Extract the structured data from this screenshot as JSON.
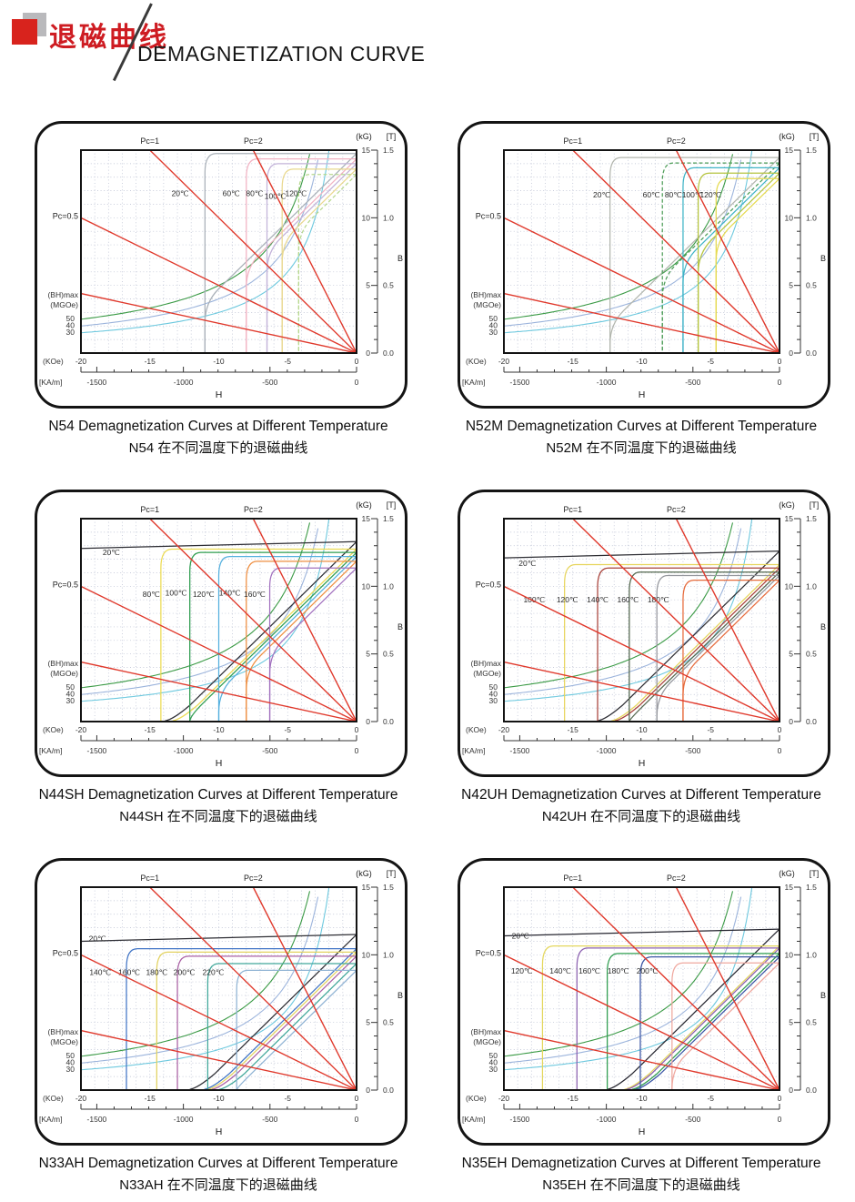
{
  "header": {
    "title_zh": "退磁曲线",
    "title_en": "DEMAGNETIZATION CURVE"
  },
  "chart_frame": {
    "h_label": "H",
    "b_label": "B",
    "kg_unit": "(kG)",
    "t_unit": "[T]",
    "koe_unit": "(KOe)",
    "kam_unit": "[KA/m]",
    "kg_ticks": [
      15,
      10,
      5,
      0
    ],
    "t_ticks": [
      "1.5",
      "1.0",
      "0.5",
      "0.0"
    ],
    "koe_ticks": [
      -20,
      -15,
      -10,
      -5,
      0
    ],
    "kam_ticks": [
      -1500,
      -1000,
      -500,
      0
    ],
    "koe_range": [
      -20,
      0
    ],
    "kg_range": [
      0,
      15
    ],
    "bhmax_label": "(BH)max",
    "mgoe_label": "(MGOe)",
    "bh_contours": [
      {
        "mgoe": 50,
        "color": "#3a9a45"
      },
      {
        "mgoe": 40,
        "color": "#9cb4dc"
      },
      {
        "mgoe": 30,
        "color": "#6cc8de"
      }
    ],
    "load_lines": [
      {
        "label": "Pc=0.5",
        "slope": 0.5
      },
      {
        "label": "Pc=1",
        "slope": 1
      },
      {
        "label": "Pc=2",
        "slope": 2
      },
      {
        "label": "",
        "slope": 0.22
      }
    ],
    "load_line_color": "#e0392c",
    "grid_color": "#b6bccf"
  },
  "chart_data": [
    {
      "grade": "N54",
      "type": "line",
      "caption_en": "N54 Demagnetization Curves at Different Temperature",
      "caption_zh": "N54 在不同温度下的退磁曲线",
      "series": [
        {
          "label": "20℃",
          "temp_c": 20,
          "color": "#a9b0b8",
          "br_kg": 14.75,
          "hcj_koe": 11.0,
          "label_at": [
            -12.8,
            11.6
          ]
        },
        {
          "label": "60℃",
          "temp_c": 60,
          "color": "#f2b3c3",
          "br_kg": 14.35,
          "hcj_koe": 8.0,
          "label_at": [
            -9.1,
            11.6
          ]
        },
        {
          "label": "80℃",
          "temp_c": 80,
          "color": "#c3b3d9",
          "br_kg": 14.0,
          "hcj_koe": 6.5,
          "label_at": [
            -7.4,
            11.6
          ]
        },
        {
          "label": "100℃",
          "temp_c": 100,
          "color": "#e9d88e",
          "br_kg": 13.6,
          "hcj_koe": 5.4,
          "label_at": [
            -5.9,
            11.4
          ]
        },
        {
          "label": "120℃",
          "temp_c": 120,
          "color": "#b7d88e",
          "br_kg": 13.2,
          "hcj_koe": 4.2,
          "dash": true,
          "label_at": [
            -4.4,
            11.6
          ]
        }
      ]
    },
    {
      "grade": "N52M",
      "type": "line",
      "caption_en": "N52M Demagnetization Curves at Different Temperature",
      "caption_zh": "N52M 在不同温度下的退磁曲线",
      "series": [
        {
          "label": "20℃",
          "temp_c": 20,
          "color": "#b2b6ae",
          "br_kg": 14.45,
          "hcj_koe": 12.3,
          "label_at": [
            -12.9,
            11.5
          ]
        },
        {
          "label": "60℃",
          "temp_c": 60,
          "color": "#4f9e5a",
          "br_kg": 14.05,
          "hcj_koe": 8.5,
          "dash": true,
          "label_at": [
            -9.3,
            11.5
          ]
        },
        {
          "label": "80℃",
          "temp_c": 80,
          "color": "#3eb3c6",
          "br_kg": 13.7,
          "hcj_koe": 7.0,
          "label_at": [
            -7.7,
            11.5
          ]
        },
        {
          "label": "100℃",
          "temp_c": 100,
          "color": "#b5c43e",
          "br_kg": 13.3,
          "hcj_koe": 5.9,
          "label_at": [
            -6.3,
            11.5
          ]
        },
        {
          "label": "120℃",
          "temp_c": 120,
          "color": "#e5da50",
          "br_kg": 12.9,
          "hcj_koe": 4.6,
          "label_at": [
            -5.0,
            11.5
          ]
        }
      ]
    },
    {
      "grade": "N44SH",
      "type": "line",
      "caption_en": "N44SH Demagnetization Curves at Different Temperature",
      "caption_zh": "N44SH 在不同温度下的退磁曲线",
      "series": [
        {
          "label": "20℃",
          "temp_c": 20,
          "color": "#2e2e34",
          "br_kg": 13.3,
          "hcj_koe": 24,
          "label_at": [
            -17.8,
            12.3
          ]
        },
        {
          "label": "80℃",
          "temp_c": 80,
          "color": "#ecdb52",
          "br_kg": 12.75,
          "hcj_koe": 14.2,
          "label_at": [
            -14.9,
            9.2
          ]
        },
        {
          "label": "100℃",
          "temp_c": 100,
          "color": "#2e9d4f",
          "br_kg": 12.5,
          "hcj_koe": 12.1,
          "label_at": [
            -13.1,
            9.3
          ]
        },
        {
          "label": "120℃",
          "temp_c": 120,
          "color": "#54b0de",
          "br_kg": 12.2,
          "hcj_koe": 10.0,
          "label_at": [
            -11.1,
            9.2
          ]
        },
        {
          "label": "140℃",
          "temp_c": 140,
          "color": "#ee8e40",
          "br_kg": 11.85,
          "hcj_koe": 8.0,
          "label_at": [
            -9.2,
            9.3
          ]
        },
        {
          "label": "160℃",
          "temp_c": 160,
          "color": "#a271bf",
          "br_kg": 11.35,
          "hcj_koe": 6.3,
          "label_at": [
            -7.4,
            9.2
          ]
        }
      ]
    },
    {
      "grade": "N42UH",
      "type": "line",
      "caption_en": "N42UH Demagnetization Curves at Different Temperature",
      "caption_zh": "N42UH 在不同温度下的退磁曲线",
      "series": [
        {
          "label": "20℃",
          "temp_c": 20,
          "color": "#2e2e34",
          "br_kg": 12.6,
          "hcj_koe": 24,
          "label_at": [
            -18.3,
            11.5
          ]
        },
        {
          "label": "100℃",
          "temp_c": 100,
          "color": "#e7d55c",
          "br_kg": 11.6,
          "hcj_koe": 15.6,
          "label_at": [
            -17.8,
            8.8
          ]
        },
        {
          "label": "120℃",
          "temp_c": 120,
          "color": "#a84139",
          "br_kg": 11.35,
          "hcj_koe": 13.2,
          "label_at": [
            -15.4,
            8.8
          ]
        },
        {
          "label": "140℃",
          "temp_c": 140,
          "color": "#53674d",
          "br_kg": 11.05,
          "hcj_koe": 10.9,
          "label_at": [
            -13.2,
            8.8
          ]
        },
        {
          "label": "160℃",
          "temp_c": 160,
          "color": "#95979d",
          "br_kg": 10.8,
          "hcj_koe": 8.9,
          "label_at": [
            -11.0,
            8.8
          ]
        },
        {
          "label": "180℃",
          "temp_c": 180,
          "color": "#e66a3b",
          "br_kg": 10.45,
          "hcj_koe": 7.0,
          "label_at": [
            -8.8,
            8.8
          ]
        }
      ]
    },
    {
      "grade": "N33AH",
      "type": "line",
      "caption_en": "N33AH Demagnetization Curves at Different Temperature",
      "caption_zh": "N33AH 在不同温度下的退磁曲线",
      "series": [
        {
          "label": "20℃",
          "temp_c": 20,
          "color": "#2e2e34",
          "br_kg": 11.5,
          "hcj_koe": 24,
          "label_at": [
            -18.8,
            11.0
          ]
        },
        {
          "label": "140℃",
          "temp_c": 140,
          "color": "#4376c6",
          "br_kg": 10.45,
          "hcj_koe": 16.7,
          "label_at": [
            -18.6,
            8.5
          ]
        },
        {
          "label": "160℃",
          "temp_c": 160,
          "color": "#e2d260",
          "br_kg": 10.2,
          "hcj_koe": 14.5,
          "label_at": [
            -16.5,
            8.5
          ]
        },
        {
          "label": "180℃",
          "temp_c": 180,
          "color": "#aa60a4",
          "br_kg": 9.9,
          "hcj_koe": 13.0,
          "label_at": [
            -14.5,
            8.5
          ]
        },
        {
          "label": "200℃",
          "temp_c": 200,
          "color": "#40a79a",
          "br_kg": 9.35,
          "hcj_koe": 10.8,
          "label_at": [
            -12.5,
            8.5
          ]
        },
        {
          "label": "220℃",
          "temp_c": 220,
          "color": "#8fb3d4",
          "br_kg": 8.85,
          "hcj_koe": 8.7,
          "label_at": [
            -10.4,
            8.5
          ]
        }
      ]
    },
    {
      "grade": "N35EH",
      "type": "line",
      "caption_en": "N35EH Demagnetization Curves at Different Temperature",
      "caption_zh": "N35EH 在不同温度下的退磁曲线",
      "series": [
        {
          "label": "20℃",
          "temp_c": 20,
          "color": "#262630",
          "br_kg": 11.9,
          "hcj_koe": 24,
          "label_at": [
            -18.8,
            11.2
          ]
        },
        {
          "label": "120℃",
          "temp_c": 120,
          "color": "#e4d75e",
          "br_kg": 10.65,
          "hcj_koe": 17.2,
          "label_at": [
            -18.7,
            8.6
          ]
        },
        {
          "label": "140℃",
          "temp_c": 140,
          "color": "#8b60b0",
          "br_kg": 10.5,
          "hcj_koe": 14.7,
          "label_at": [
            -15.9,
            8.6
          ]
        },
        {
          "label": "160℃",
          "temp_c": 160,
          "color": "#2e9d4f",
          "br_kg": 10.1,
          "hcj_koe": 12.5,
          "label_at": [
            -13.8,
            8.6
          ]
        },
        {
          "label": "180℃",
          "temp_c": 180,
          "color": "#3a55a4",
          "br_kg": 9.85,
          "hcj_koe": 10.1,
          "label_at": [
            -11.7,
            8.6
          ]
        },
        {
          "label": "200℃",
          "temp_c": 200,
          "color": "#efa89f",
          "br_kg": 9.4,
          "hcj_koe": 7.8,
          "label_at": [
            -9.6,
            8.6
          ]
        }
      ]
    }
  ]
}
